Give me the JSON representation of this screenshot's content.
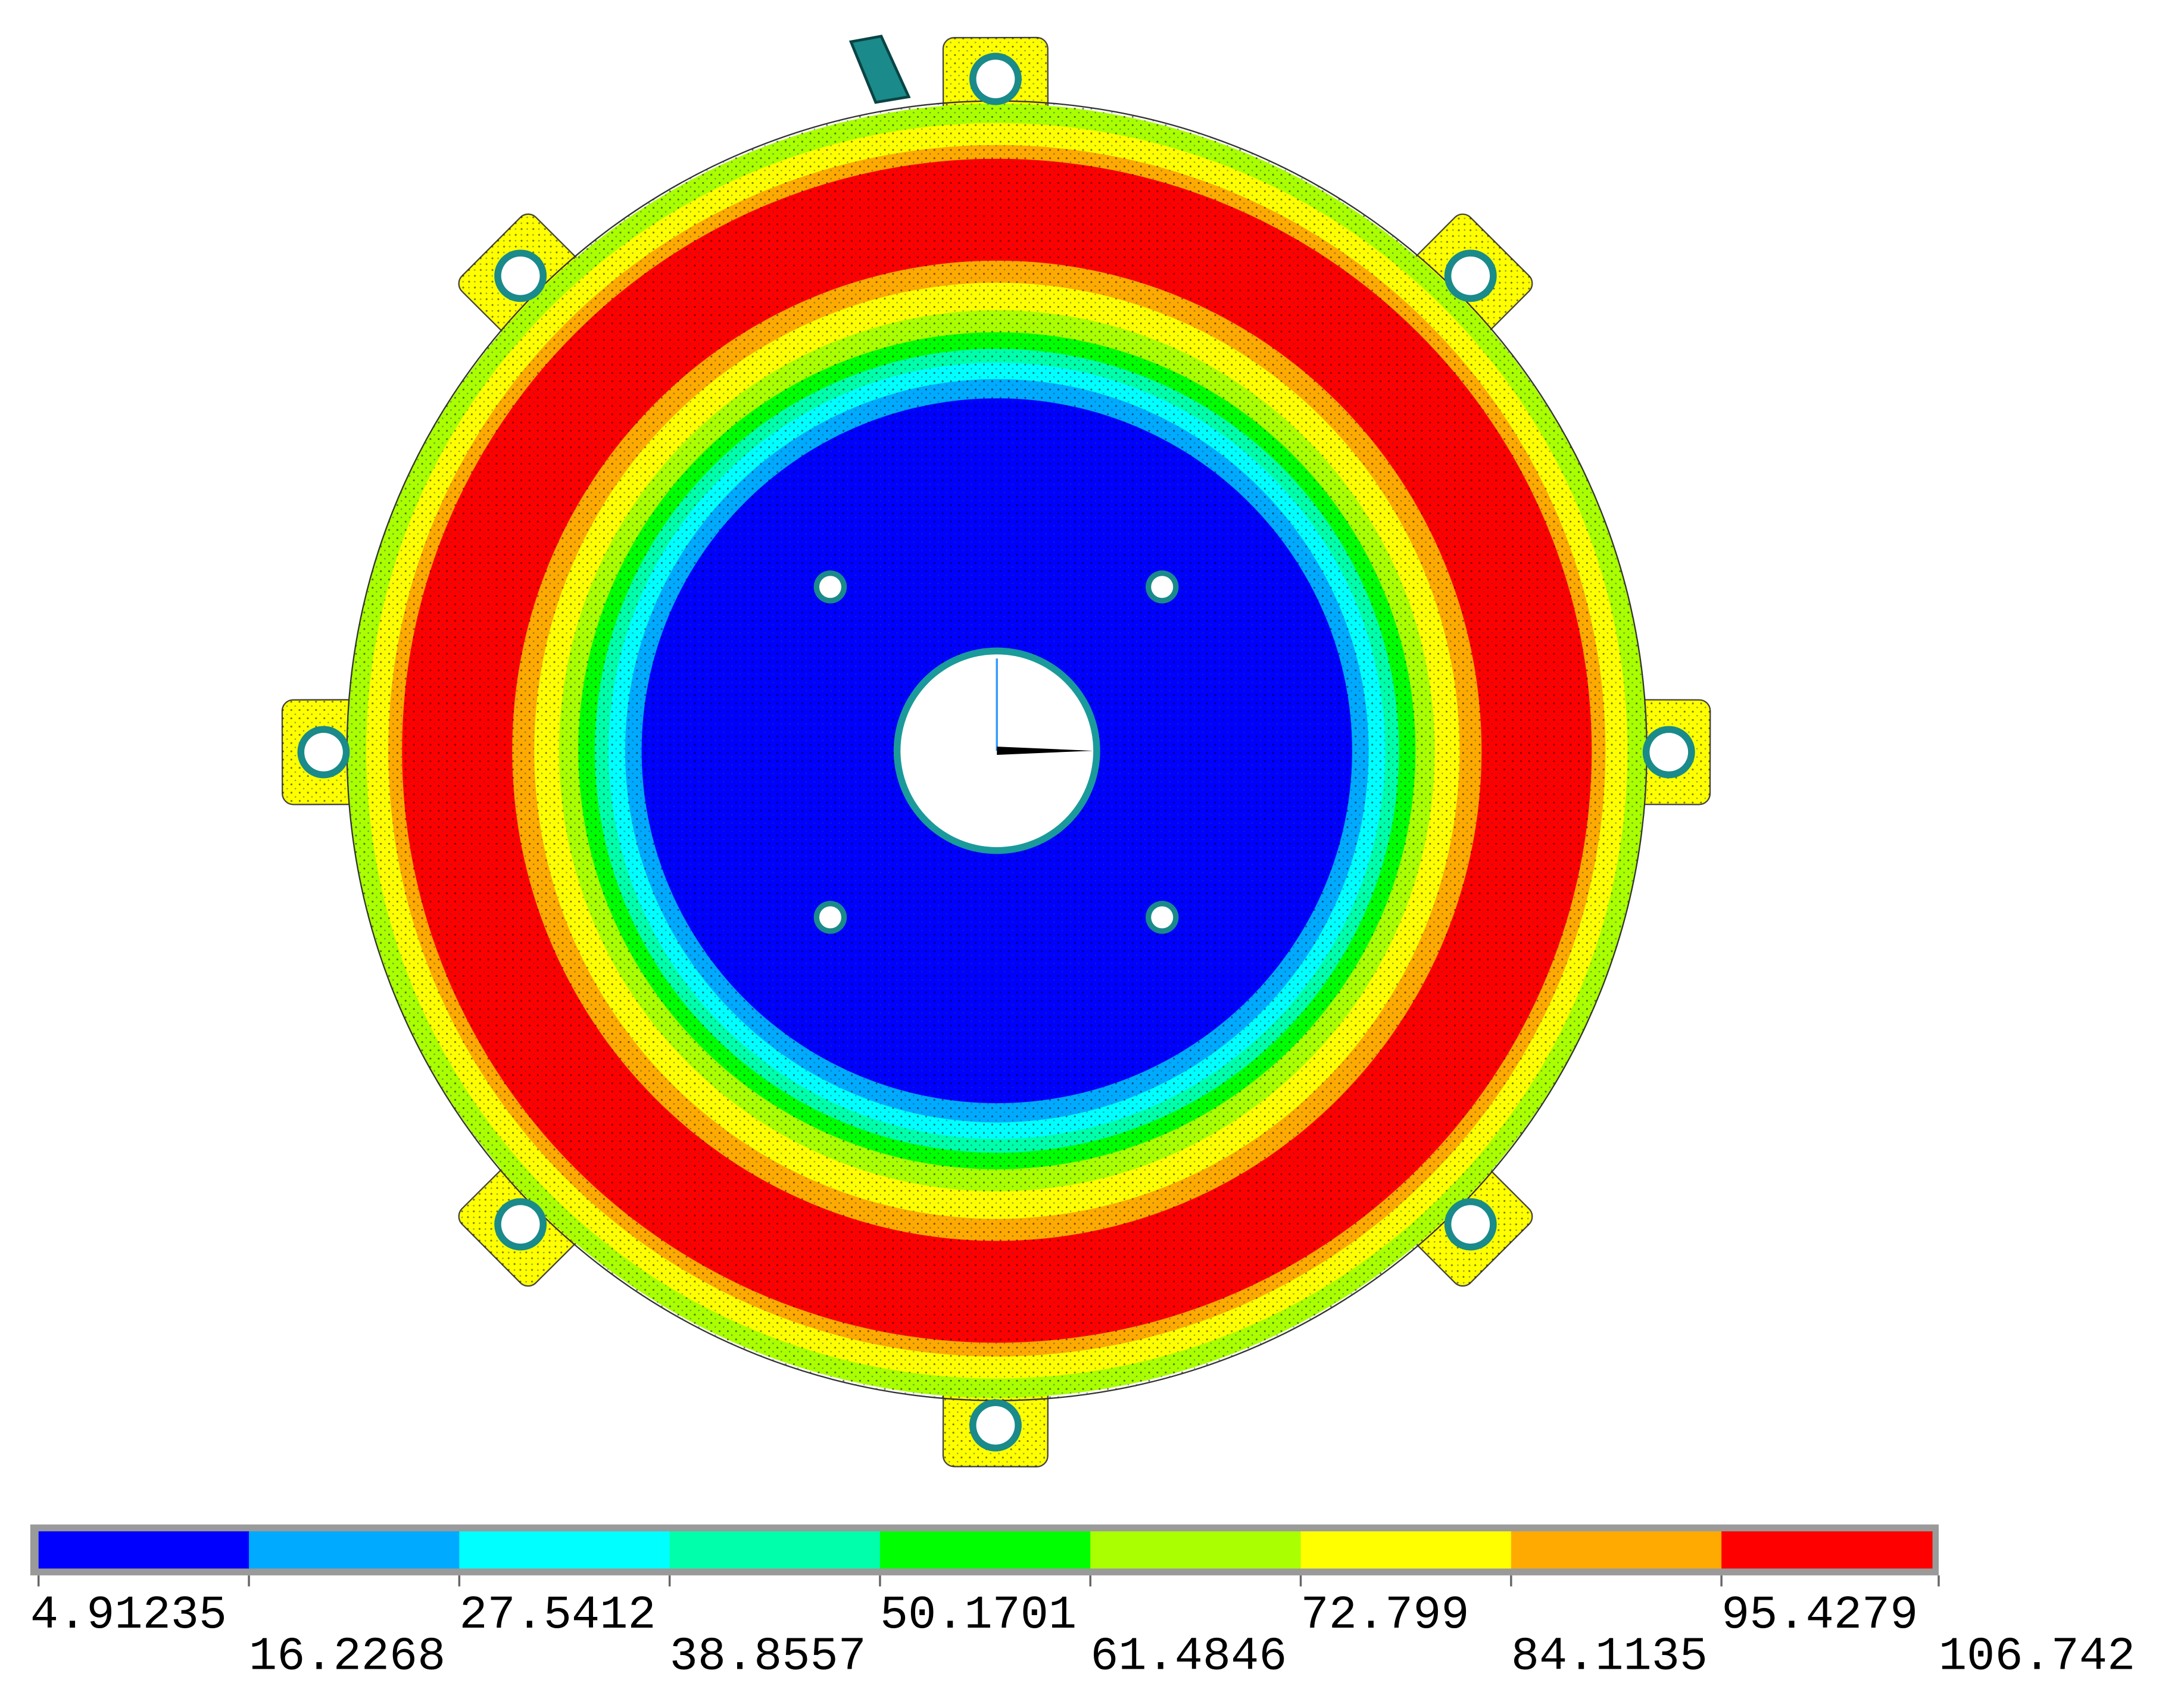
{
  "legend": {
    "levels": [
      4.91235,
      16.2268,
      27.5412,
      38.8557,
      50.1701,
      61.4846,
      72.799,
      84.1135,
      95.4279,
      106.742
    ],
    "colors": [
      "#0000ff",
      "#00aaff",
      "#00ffff",
      "#00ffaa",
      "#00ff00",
      "#aaff00",
      "#ffff00",
      "#ffaa00",
      "#ff0000"
    ]
  }
}
